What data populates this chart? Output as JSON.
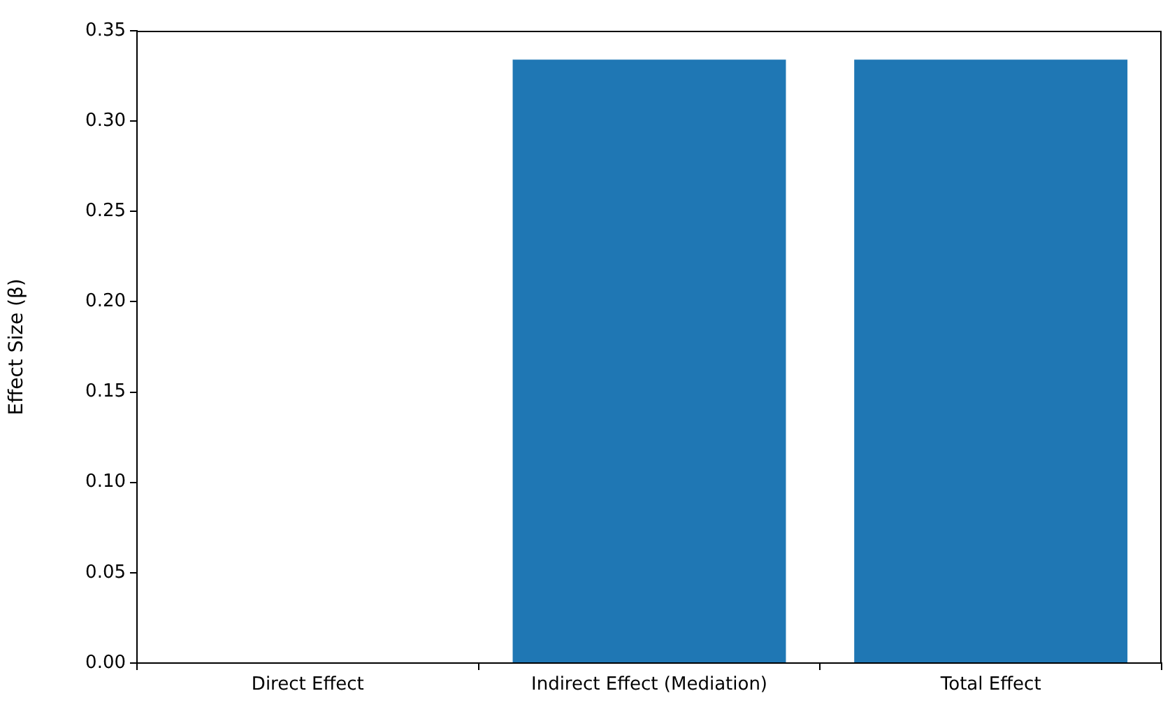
{
  "chart_data": {
    "type": "bar",
    "ylabel": "Effect Size (β)",
    "categories": [
      "Direct Effect",
      "Indirect Effect (Mediation)",
      "Total Effect"
    ],
    "values": [
      0,
      0.334,
      0.334
    ],
    "color": "#1f77b4",
    "ylim": [
      0,
      0.35
    ],
    "yticks": [
      {
        "value": 0,
        "label": "0.00"
      },
      0.05,
      {
        "value": 0.1,
        "label": "0.10"
      },
      0.15,
      {
        "value": 0.2,
        "label": "0.20"
      },
      0.25,
      {
        "value": 0.3,
        "label": "0.30"
      },
      0.35
    ],
    "grid": false
  }
}
